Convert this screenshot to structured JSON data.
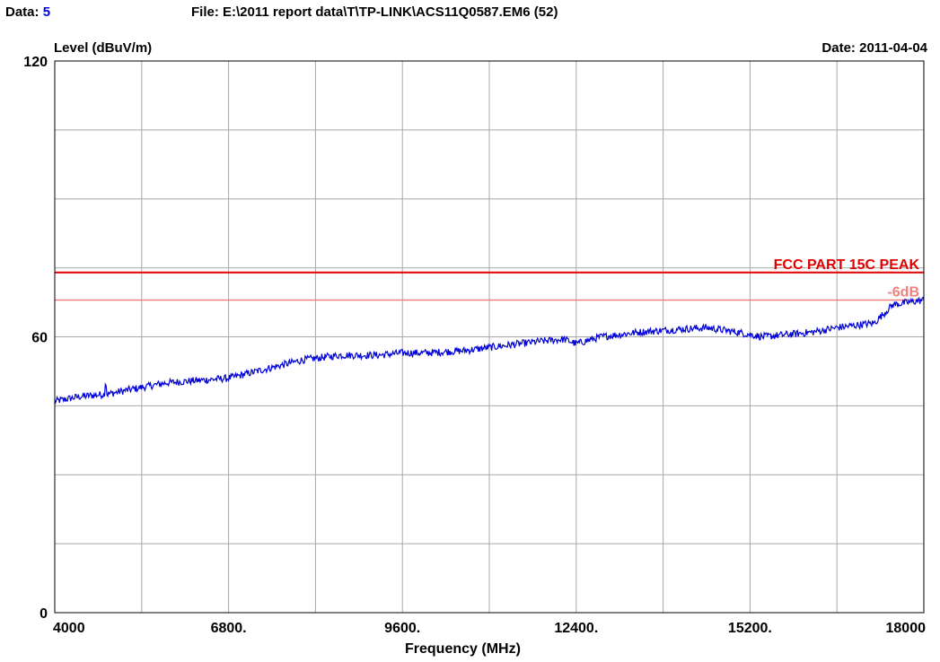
{
  "header": {
    "data_label": "Data:",
    "data_value": "5",
    "file_text": "File: E:\\2011 report data\\T\\TP-LINK\\ACS11Q0587.EM6  (52)",
    "y_axis_label": "Level (dBuV/m)",
    "date_text": "Date: 2011-04-04"
  },
  "chart_data": {
    "type": "line",
    "xlabel": "Frequency (MHz)",
    "ylabel": "Level (dBuV/m)",
    "xlim": [
      4000,
      18000
    ],
    "ylim": [
      0,
      120
    ],
    "x_tick_labels": [
      "4000",
      "6800.",
      "9600.",
      "12400.",
      "15200.",
      "18000"
    ],
    "y_tick_labels": [
      "0",
      "60",
      "120"
    ],
    "grid": true,
    "limit_lines": [
      {
        "name": "FCC PART 15C  PEAK",
        "y": 74,
        "color": "#e00000"
      },
      {
        "name": "-6dB",
        "y": 68,
        "color": "#f08080"
      }
    ],
    "series": [
      {
        "color": "#0000d8",
        "x": [
          4000,
          4400,
          4800,
          4820,
          4840,
          5200,
          5800,
          6800,
          7400,
          8000,
          8600,
          9200,
          9600,
          10000,
          10600,
          11200,
          11800,
          12200,
          12400,
          12800,
          13400,
          13900,
          14500,
          15000,
          15400,
          15800,
          16200,
          16600,
          16900,
          17200,
          17500,
          18000
        ],
        "y": [
          46,
          47,
          47.5,
          51,
          47.5,
          48.5,
          50,
          51,
          53,
          55,
          56,
          56,
          56.5,
          56.5,
          57,
          58,
          59,
          59.5,
          58.5,
          60,
          61,
          61.5,
          62,
          61,
          60,
          60.5,
          61,
          62,
          62.5,
          63,
          67,
          68
        ]
      }
    ]
  }
}
